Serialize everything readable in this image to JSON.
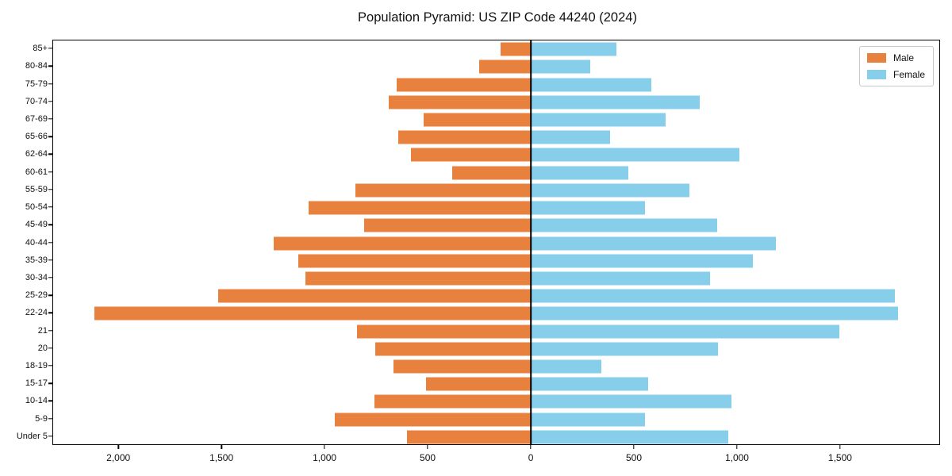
{
  "title": "Population Pyramid: US ZIP Code 44240 (2024)",
  "legend": {
    "male_label": "Male",
    "female_label": "Female",
    "position": "upper right"
  },
  "colors": {
    "male": "#e8813d",
    "female": "#87ceeb",
    "axis": "#000000",
    "background": "#ffffff"
  },
  "chart_data": {
    "type": "bar",
    "subtype": "population-pyramid-horizontal",
    "title": "Population Pyramid: US ZIP Code 44240 (2024)",
    "xlabel": "",
    "ylabel": "",
    "grid": false,
    "legend_position": "upper right",
    "xlim": [
      -2320,
      1985
    ],
    "categories_top_to_bottom": [
      "85+",
      "80-84",
      "75-79",
      "70-74",
      "67-69",
      "65-66",
      "62-64",
      "60-61",
      "55-59",
      "50-54",
      "45-49",
      "40-44",
      "35-39",
      "30-34",
      "25-29",
      "22-24",
      "21",
      "20",
      "18-19",
      "15-17",
      "10-14",
      "5-9",
      "Under 5"
    ],
    "series": [
      {
        "name": "Male",
        "direction": "left",
        "values": [
          145,
          250,
          650,
          690,
          520,
          645,
          580,
          380,
          850,
          1080,
          810,
          1250,
          1130,
          1095,
          1520,
          2120,
          845,
          755,
          665,
          510,
          760,
          950,
          600
        ]
      },
      {
        "name": "Female",
        "direction": "right",
        "values": [
          415,
          290,
          585,
          820,
          655,
          385,
          1015,
          475,
          770,
          555,
          905,
          1190,
          1080,
          870,
          1770,
          1785,
          1500,
          910,
          345,
          570,
          975,
          555,
          960
        ]
      }
    ],
    "x_ticks": [
      {
        "value": -2000,
        "label": "2,000"
      },
      {
        "value": -1500,
        "label": "1,500"
      },
      {
        "value": -1000,
        "label": "1,000"
      },
      {
        "value": -500,
        "label": "500"
      },
      {
        "value": 0,
        "label": "0"
      },
      {
        "value": 500,
        "label": "500"
      },
      {
        "value": 1000,
        "label": "1,000"
      },
      {
        "value": 1500,
        "label": "1,500"
      }
    ]
  }
}
